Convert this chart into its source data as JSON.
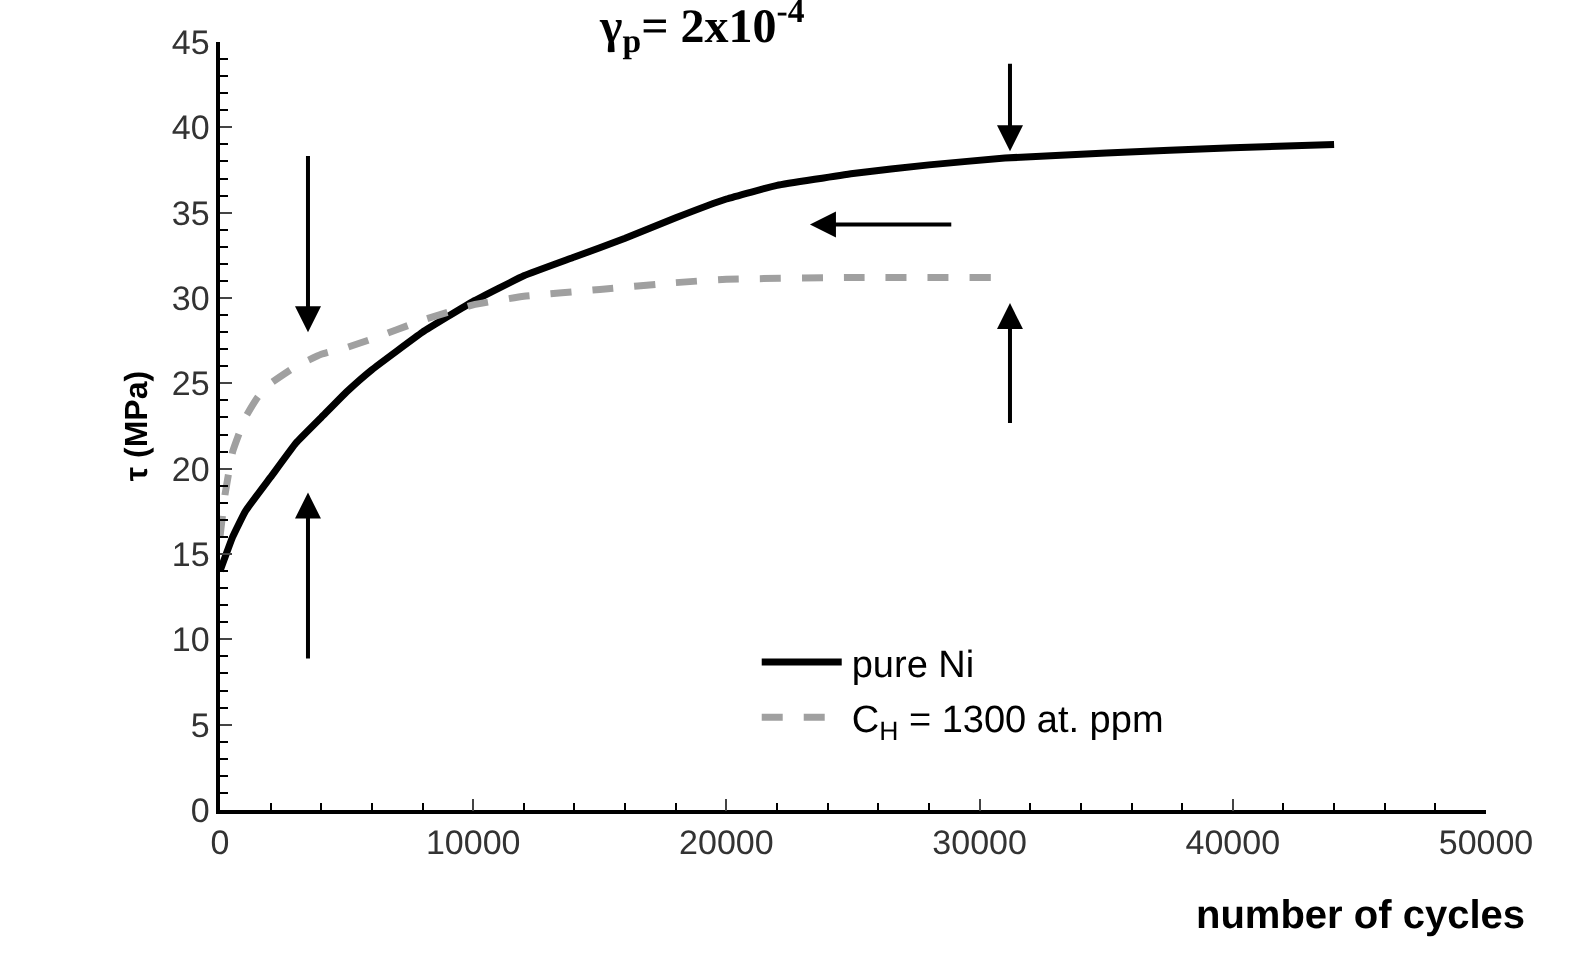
{
  "chart_data": {
    "type": "line",
    "xlabel": "number of cycles",
    "ylabel": "τ (MPa)",
    "annotations": [
      "γ$_{p}$= 2x10$^{-4}$"
    ],
    "xlim": [
      0,
      50000
    ],
    "xticks": [
      0,
      10000,
      20000,
      30000,
      40000,
      50000
    ],
    "ylim": [
      0,
      45
    ],
    "yticks": [
      0,
      5,
      10,
      15,
      20,
      25,
      30,
      35,
      40,
      45
    ],
    "grid": false,
    "legend": "bottom right",
    "series": [
      {
        "name": "pure Ni",
        "color": "#000000",
        "line_style": "solid",
        "x": [
          0,
          500,
          1000,
          2000,
          3000,
          4000,
          5000,
          6000,
          8000,
          10000,
          12000,
          14000,
          16000,
          18000,
          20000,
          22000,
          25000,
          28000,
          31000,
          35000,
          40000,
          44000
        ],
        "values": [
          14,
          16,
          17.5,
          19.5,
          21.5,
          23,
          24.5,
          25.8,
          28,
          29.8,
          31.3,
          32.4,
          33.5,
          34.7,
          35.8,
          36.6,
          37.3,
          37.8,
          38.2,
          38.5,
          38.8,
          39
        ]
      },
      {
        "name": "C$_{H}$ = 1300 at. ppm",
        "color": "#a0a0a0",
        "line_style": "dashed",
        "x": [
          0,
          200,
          500,
          1000,
          1500,
          2000,
          3000,
          4000,
          5000,
          6000,
          8000,
          10000,
          12000,
          15000,
          18000,
          20000,
          25000,
          30500
        ],
        "values": [
          16,
          18.5,
          21,
          23,
          24.2,
          25,
          26,
          26.7,
          27.1,
          27.6,
          28.7,
          29.6,
          30.1,
          30.5,
          30.9,
          31.1,
          31.2,
          31.2
        ]
      }
    ]
  }
}
